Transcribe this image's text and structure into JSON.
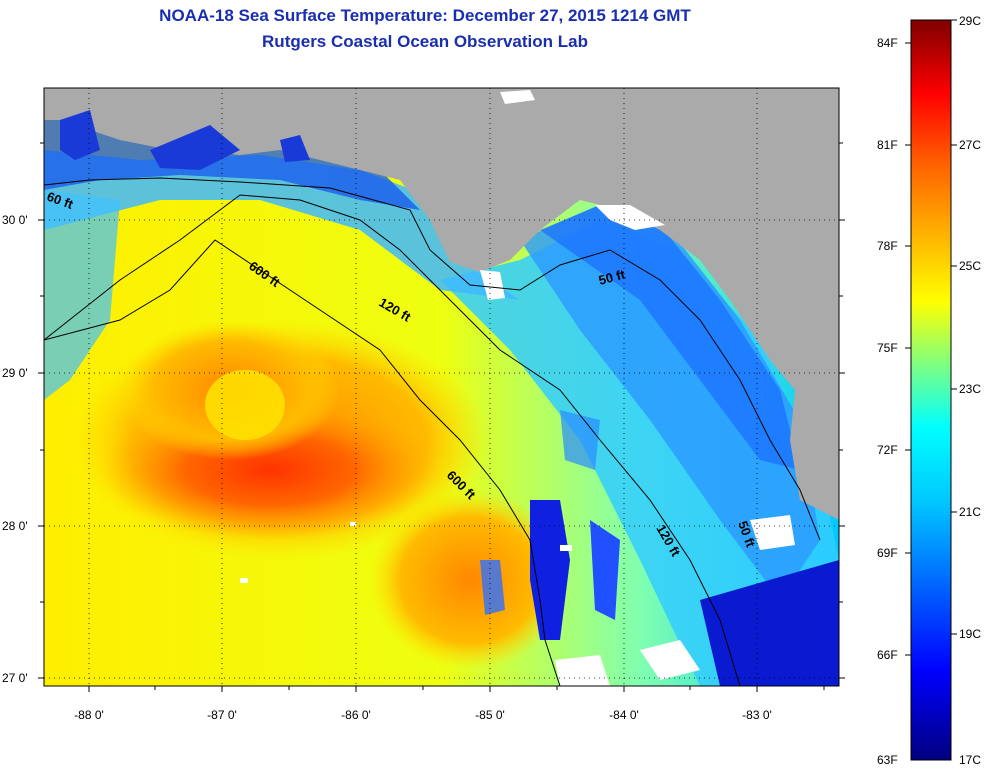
{
  "title": {
    "line1": "NOAA-18 Sea Surface Temperature:  December 27, 2015 1214 GMT",
    "line2": "Rutgers Coastal Ocean Observation Lab"
  },
  "axes": {
    "lat_labels": [
      "30 0'",
      "29 0'",
      "28 0'",
      "27 0'"
    ],
    "lon_labels": [
      "-88 0'",
      "-87 0'",
      "-86 0'",
      "-85 0'",
      "-84 0'",
      "-83 0'"
    ]
  },
  "contours": {
    "labels": [
      "60 ft",
      "600 ft",
      "120 ft",
      "50 ft",
      "600 ft",
      "120 ft",
      "50 ft"
    ]
  },
  "colorbar": {
    "fahrenheit": [
      "84F",
      "81F",
      "78F",
      "75F",
      "72F",
      "69F",
      "66F",
      "63F"
    ],
    "celsius": [
      "29C",
      "27C",
      "25C",
      "23C",
      "21C",
      "19C",
      "17C"
    ]
  },
  "colors": {
    "land": "#aaaaaa",
    "cloud": "#ffffff",
    "title": "#1a2fb0"
  }
}
